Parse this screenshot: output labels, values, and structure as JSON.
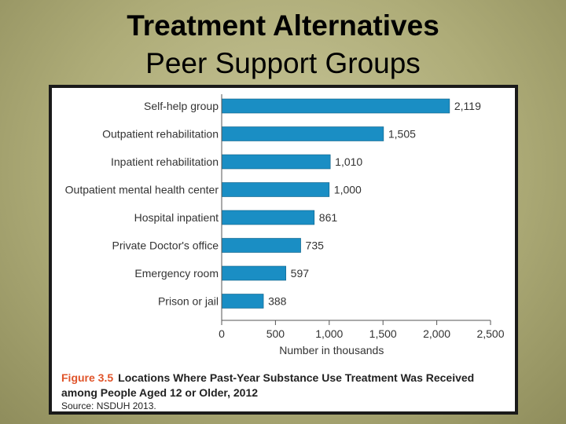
{
  "slide": {
    "title_line_1": "Treatment Alternatives",
    "title_line_2": "Peer Support Groups"
  },
  "chart_data": {
    "type": "bar",
    "orientation": "horizontal",
    "categories": [
      "Self-help group",
      "Outpatient rehabilitation",
      "Inpatient rehabilitation",
      "Outpatient mental health center",
      "Hospital inpatient",
      "Private Doctor's office",
      "Emergency room",
      "Prison or jail"
    ],
    "values": [
      2119,
      1505,
      1010,
      1000,
      861,
      735,
      597,
      388
    ],
    "value_labels": [
      "2,119",
      "1,505",
      "1,010",
      "1,000",
      "861",
      "735",
      "597",
      "388"
    ],
    "xticks": [
      0,
      500,
      1000,
      1500,
      2000,
      2500
    ],
    "xtick_labels": [
      "0",
      "500",
      "1,000",
      "1,500",
      "2,000",
      "2,500"
    ],
    "xlim": [
      0,
      2500
    ],
    "xlabel": "Number in thousands",
    "bar_color": "#1a8ec4",
    "grid": false
  },
  "caption": {
    "figure_number": "Figure 3.5",
    "title": "Locations Where Past-Year Substance Use Treatment Was Received among People Aged 12 or Older, 2012",
    "source": "Source: NSDUH 2013."
  }
}
